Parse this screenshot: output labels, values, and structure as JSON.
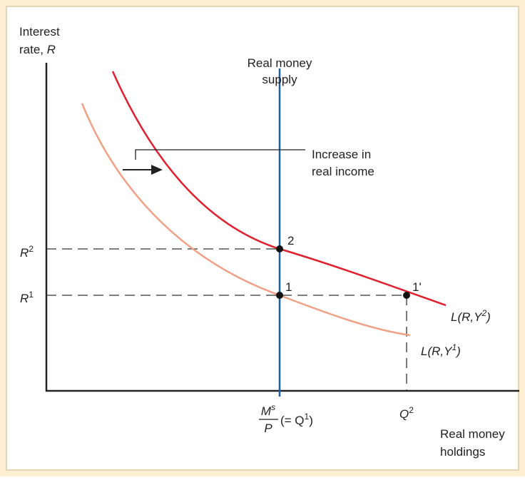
{
  "y_axis_label": {
    "line1": "Interest",
    "line2": "rate, ",
    "var": "R"
  },
  "supply_label": {
    "line1": "Real money",
    "line2": "supply"
  },
  "shift_label": {
    "line1": "Increase in",
    "line2": "real income"
  },
  "r2": {
    "base": "R",
    "sup": "2"
  },
  "r1": {
    "base": "R",
    "sup": "1"
  },
  "points": [
    "2",
    "1",
    "1'"
  ],
  "curve2": {
    "base": "L(R,Y",
    "sup": "2",
    "end": ")"
  },
  "curve1": {
    "base": "L(R,Y",
    "sup": "1",
    "end": ")"
  },
  "ms_p": {
    "num": "M",
    "num_sup": "s",
    "den": "P",
    "eq": "(= Q",
    "eq_sup": "1",
    "eq_end": ")"
  },
  "q2": {
    "base": "Q",
    "sup": "2"
  },
  "x_axis_label": {
    "line1": "Real money",
    "line2": "holdings"
  }
}
